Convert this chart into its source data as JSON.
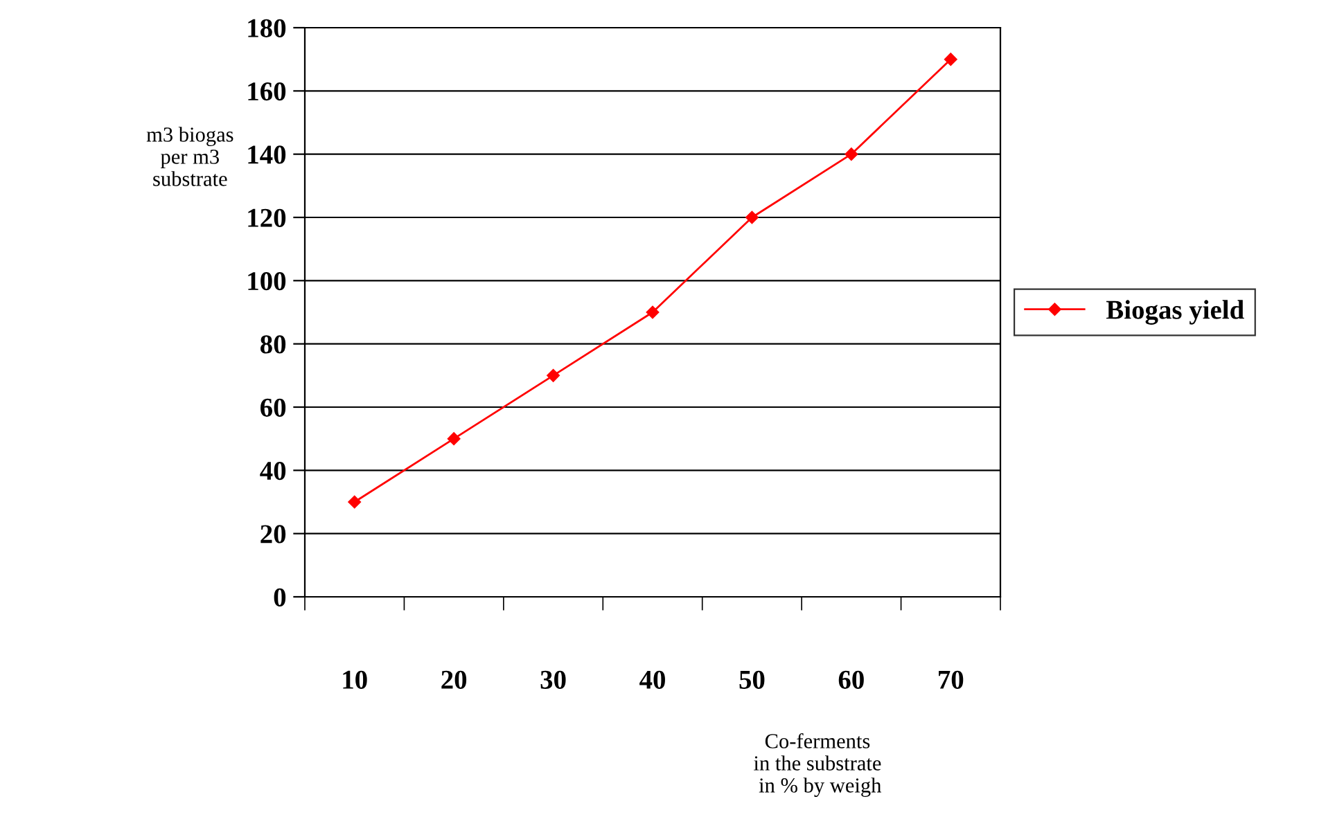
{
  "chart_data": {
    "type": "line",
    "xlabel": "Co-ferments\nin the substrate\n in % by weigh",
    "ylabel": "m3 biogas\nper m3\nsubstrate",
    "categories": [
      "10",
      "20",
      "30",
      "40",
      "50",
      "60",
      "70"
    ],
    "series": [
      {
        "name": "Biogas yield",
        "color": "#ff0000",
        "values": [
          30,
          50,
          70,
          90,
          120,
          140,
          170
        ]
      }
    ],
    "ylim": [
      0,
      180
    ],
    "yticks": [
      0,
      20,
      40,
      60,
      80,
      100,
      120,
      140,
      160,
      180
    ],
    "grid": "y",
    "legend": "right",
    "marker": "diamond",
    "line_style": "solid"
  }
}
